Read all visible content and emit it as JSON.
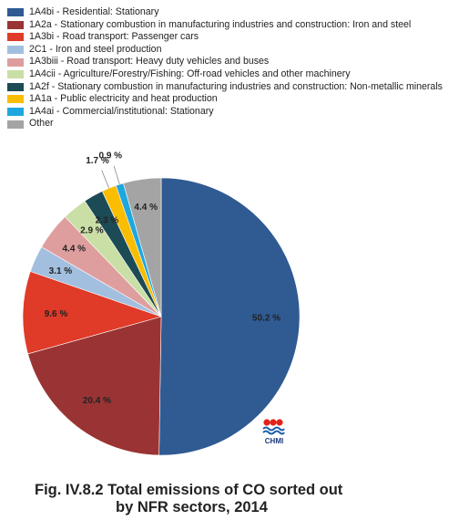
{
  "chart_data": {
    "type": "pie",
    "categories": [
      "1A4bi - Residential: Stationary",
      "1A2a - Stationary combustion in manufacturing industries and construction: Iron and steel",
      "1A3bi - Road transport: Passenger cars",
      "2C1 - Iron and steel production",
      "1A3biii - Road transport: Heavy duty vehicles and buses",
      "1A4cii - Agriculture/Forestry/Fishing: Off-road vehicles and other machinery",
      "1A2f - Stationary combustion in manufacturing industries and construction: Non-metallic minerals",
      "1A1a - Public electricity and heat production",
      "1A4ai - Commercial/institutional: Stationary",
      "Other"
    ],
    "values": [
      50.2,
      20.4,
      9.6,
      3.1,
      4.4,
      2.9,
      2.3,
      1.7,
      0.9,
      4.4
    ],
    "data_labels": [
      "50.2 %",
      "20.4 %",
      "9.6 %",
      "3.1 %",
      "4.4 %",
      "2.9 %",
      "2.3 %",
      "1.7 %",
      "0.9 %",
      "4.4 %"
    ],
    "colors": [
      "#2f5a92",
      "#9a3434",
      "#e03a28",
      "#a3bfdf",
      "#df9e9e",
      "#c9dfa5",
      "#1c4a55",
      "#fbbd00",
      "#1fa6df",
      "#a4a4a4"
    ],
    "legend_position": "top",
    "title": "Fig. IV.8.2  Total emissions of CO sorted out",
    "title_line2": "by NFR sectors, 2014"
  },
  "logo": {
    "text": "CHMI"
  }
}
